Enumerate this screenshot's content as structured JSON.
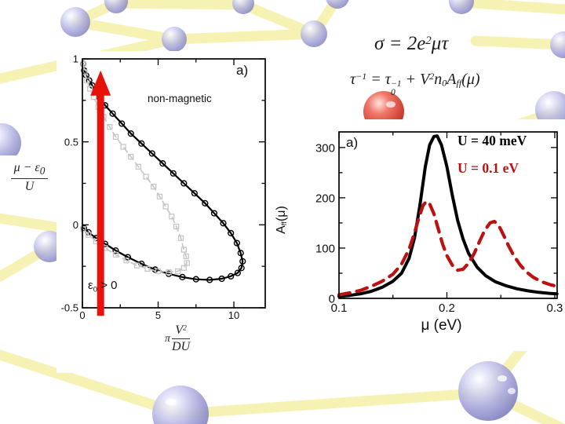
{
  "slide": {
    "equations": {
      "conductivity": {
        "base": "σ = 2e",
        "sup": "2",
        "rest": "μτ"
      },
      "scattering": {
        "tau": "τ",
        "tau_sup": "−1",
        "equals": " = ",
        "tau2": "τ",
        "tau2_sup": "−1",
        "tau2_sub": "0",
        "plus": " + ",
        "V": "V",
        "V_sup": "2",
        "n": "n",
        "n_sub": "0",
        "A": "A",
        "A_sub": "ff",
        "mu": "(μ)"
      }
    },
    "colors": {
      "arrow_red": "#e8120c",
      "curve_red": "#bb1111",
      "curve_gray": "#c6c6c6",
      "curve_black": "#000000",
      "bond_yellow": "#f5f1ae",
      "atom_blue": "#9a9ad8",
      "atom_red": "#d2281e"
    }
  },
  "chart_data": [
    {
      "type": "line",
      "panel_label": "a)",
      "region_label": "non-magnetic",
      "annotation_epsilon": {
        "base": "ε",
        "sub": "0",
        "rest": " > 0"
      },
      "xlabel": "π V²/(DU)",
      "xlabel_parts": {
        "pi": "π",
        "num_base": "V",
        "num_sup": "2",
        "den": "DU"
      },
      "ylabel": "(μ − ε₀)/U",
      "ylabel_parts": {
        "num_base": "μ − ε",
        "num_sub": "0",
        "den": "U"
      },
      "xlim": [
        0,
        12.07
      ],
      "ylim": [
        -0.5,
        1.0
      ],
      "x_ticks": [
        0,
        5,
        10
      ],
      "x_minor": [
        2.5,
        7.5
      ],
      "y_ticks": [
        1,
        0.5,
        0,
        -0.5
      ],
      "y_minor": [
        0.75,
        0.25,
        -0.25
      ],
      "grid": false,
      "legend_position": "none",
      "arrow": {
        "x": 1.2,
        "y_from": -0.52,
        "y_to": 0.93,
        "color": "#e8120c"
      },
      "series": [
        {
          "name": "phase-boundary-solid-circles",
          "color": "#000000",
          "width": 2.2,
          "dash": null,
          "marker": "circle",
          "points": [
            [
              0.05,
              0.97
            ],
            [
              0.12,
              0.93
            ],
            [
              0.25,
              0.9
            ],
            [
              0.45,
              0.87
            ],
            [
              0.65,
              0.84
            ],
            [
              0.85,
              0.81
            ],
            [
              1.1,
              0.77
            ],
            [
              1.5,
              0.72
            ],
            [
              2.0,
              0.67
            ],
            [
              2.6,
              0.61
            ],
            [
              3.2,
              0.55
            ],
            [
              3.9,
              0.49
            ],
            [
              4.6,
              0.43
            ],
            [
              5.3,
              0.37
            ],
            [
              6.0,
              0.31
            ],
            [
              6.7,
              0.25
            ],
            [
              7.4,
              0.19
            ],
            [
              8.1,
              0.13
            ],
            [
              8.7,
              0.07
            ],
            [
              9.3,
              0.01
            ],
            [
              9.8,
              -0.05
            ],
            [
              10.2,
              -0.11
            ],
            [
              10.45,
              -0.17
            ],
            [
              10.58,
              -0.22
            ],
            [
              10.5,
              -0.26
            ],
            [
              10.25,
              -0.29
            ],
            [
              9.8,
              -0.31
            ],
            [
              9.2,
              -0.325
            ],
            [
              8.4,
              -0.332
            ],
            [
              7.5,
              -0.328
            ],
            [
              6.6,
              -0.315
            ],
            [
              5.7,
              -0.295
            ],
            [
              4.8,
              -0.27
            ],
            [
              3.9,
              -0.235
            ],
            [
              3.0,
              -0.195
            ],
            [
              2.2,
              -0.155
            ],
            [
              1.5,
              -0.115
            ],
            [
              0.9,
              -0.08
            ],
            [
              0.4,
              -0.045
            ],
            [
              0.1,
              -0.02
            ]
          ]
        },
        {
          "name": "phase-boundary-dashed-squares",
          "color": "#c6c6c6",
          "width": 1.7,
          "dash": "7 5",
          "marker": "square",
          "points": [
            [
              0.05,
              0.97
            ],
            [
              0.15,
              0.92
            ],
            [
              0.3,
              0.87
            ],
            [
              0.5,
              0.82
            ],
            [
              0.75,
              0.77
            ],
            [
              1.05,
              0.71
            ],
            [
              1.4,
              0.65
            ],
            [
              1.8,
              0.59
            ],
            [
              2.2,
              0.53
            ],
            [
              2.7,
              0.47
            ],
            [
              3.2,
              0.41
            ],
            [
              3.7,
              0.35
            ],
            [
              4.2,
              0.29
            ],
            [
              4.7,
              0.23
            ],
            [
              5.1,
              0.17
            ],
            [
              5.5,
              0.11
            ],
            [
              5.9,
              0.05
            ],
            [
              6.2,
              -0.01
            ],
            [
              6.5,
              -0.08
            ],
            [
              6.7,
              -0.15
            ],
            [
              6.85,
              -0.19
            ],
            [
              6.9,
              -0.23
            ],
            [
              6.7,
              -0.26
            ],
            [
              6.3,
              -0.28
            ],
            [
              5.7,
              -0.285
            ],
            [
              5.0,
              -0.28
            ],
            [
              4.3,
              -0.265
            ],
            [
              3.6,
              -0.245
            ],
            [
              2.9,
              -0.215
            ],
            [
              2.2,
              -0.18
            ],
            [
              1.5,
              -0.14
            ],
            [
              0.9,
              -0.1
            ],
            [
              0.4,
              -0.06
            ],
            [
              0.05,
              -0.025
            ]
          ]
        }
      ]
    },
    {
      "type": "line",
      "panel_label": "a)",
      "xlabel": "μ (eV)",
      "ylabel": "A_ff(μ)",
      "ylabel_parts": {
        "base": "A",
        "sub": "ff",
        "rest": "(μ)"
      },
      "xlim": [
        0.1,
        0.3022
      ],
      "ylim": [
        0,
        331
      ],
      "x_ticks": [
        0.1,
        0.2,
        0.3
      ],
      "x_minor": [
        0.15,
        0.25
      ],
      "y_ticks": [
        0,
        100,
        200,
        300
      ],
      "y_minor": [
        50,
        150,
        250
      ],
      "grid": false,
      "legend_position": "upper-right",
      "legend": [
        {
          "label": "U = 40 meV",
          "color": "#000000"
        },
        {
          "label": "U = 0.1 eV",
          "color": "#bb1111"
        }
      ],
      "series": [
        {
          "name": "U = 40 meV",
          "color": "#000000",
          "width": 4,
          "dash": null,
          "marker": null,
          "points": [
            [
              0.1,
              4
            ],
            [
              0.11,
              6
            ],
            [
              0.12,
              9
            ],
            [
              0.13,
              14
            ],
            [
              0.14,
              22
            ],
            [
              0.15,
              34
            ],
            [
              0.158,
              50
            ],
            [
              0.165,
              80
            ],
            [
              0.17,
              120
            ],
            [
              0.175,
              185
            ],
            [
              0.18,
              262
            ],
            [
              0.184,
              305
            ],
            [
              0.188,
              322
            ],
            [
              0.191,
              323
            ],
            [
              0.195,
              305
            ],
            [
              0.2,
              262
            ],
            [
              0.205,
              205
            ],
            [
              0.21,
              155
            ],
            [
              0.215,
              118
            ],
            [
              0.22,
              90
            ],
            [
              0.228,
              62
            ],
            [
              0.236,
              45
            ],
            [
              0.245,
              33
            ],
            [
              0.255,
              25
            ],
            [
              0.265,
              19
            ],
            [
              0.275,
              15
            ],
            [
              0.285,
              12
            ],
            [
              0.295,
              10
            ],
            [
              0.302,
              9
            ]
          ]
        },
        {
          "name": "U = 0.1 eV",
          "color": "#bb1111",
          "width": 4.2,
          "dash": "14 9",
          "marker": null,
          "points": [
            [
              0.1,
              7
            ],
            [
              0.11,
              11
            ],
            [
              0.12,
              16
            ],
            [
              0.13,
              24
            ],
            [
              0.14,
              34
            ],
            [
              0.15,
              48
            ],
            [
              0.158,
              68
            ],
            [
              0.165,
              98
            ],
            [
              0.17,
              130
            ],
            [
              0.174,
              160
            ],
            [
              0.178,
              185
            ],
            [
              0.181,
              193
            ],
            [
              0.184,
              188
            ],
            [
              0.188,
              168
            ],
            [
              0.192,
              138
            ],
            [
              0.196,
              108
            ],
            [
              0.2,
              85
            ],
            [
              0.205,
              66
            ],
            [
              0.21,
              56
            ],
            [
              0.215,
              58
            ],
            [
              0.22,
              70
            ],
            [
              0.225,
              88
            ],
            [
              0.23,
              112
            ],
            [
              0.235,
              135
            ],
            [
              0.24,
              150
            ],
            [
              0.244,
              153
            ],
            [
              0.248,
              145
            ],
            [
              0.252,
              128
            ],
            [
              0.257,
              105
            ],
            [
              0.262,
              85
            ],
            [
              0.268,
              66
            ],
            [
              0.274,
              52
            ],
            [
              0.28,
              42
            ],
            [
              0.288,
              33
            ],
            [
              0.296,
              27
            ],
            [
              0.302,
              24
            ]
          ]
        }
      ]
    }
  ]
}
